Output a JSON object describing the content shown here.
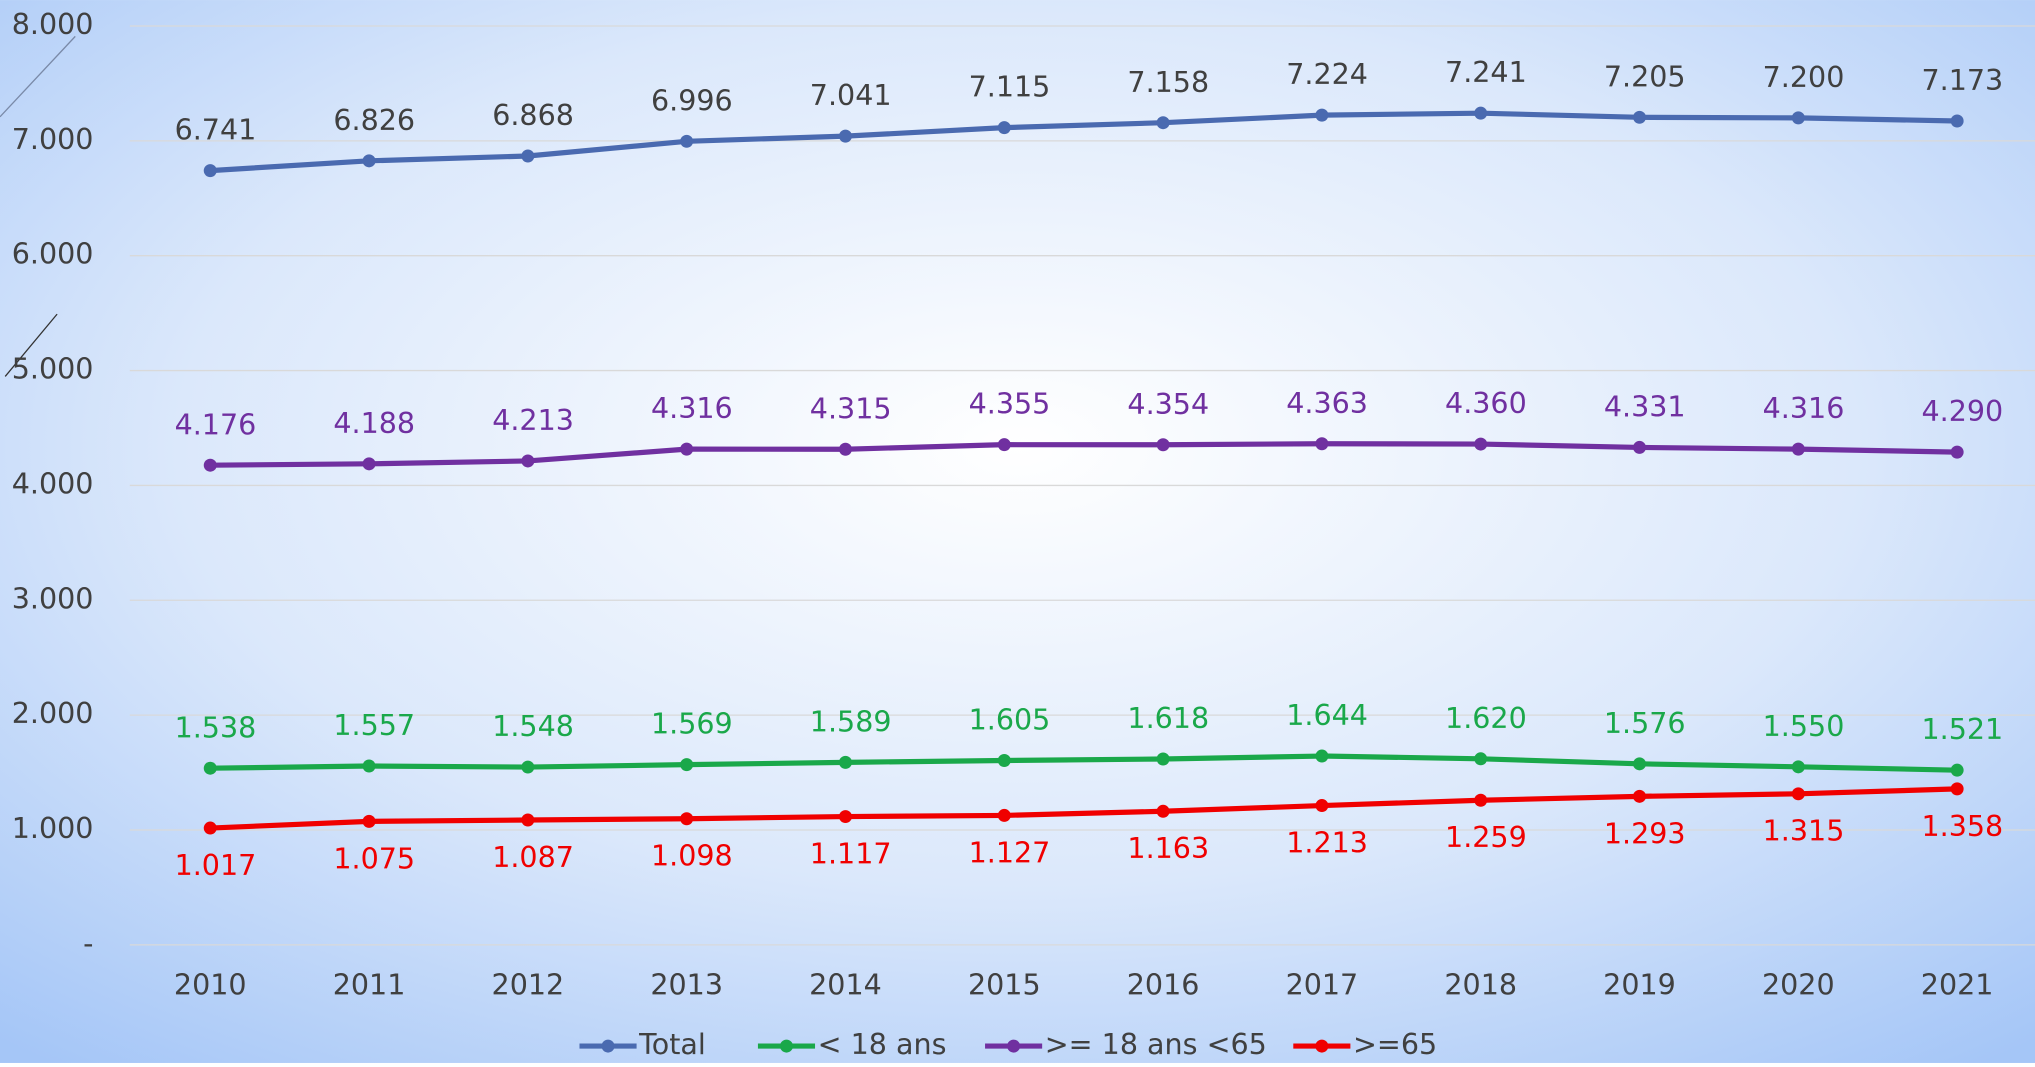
{
  "chart_data": {
    "type": "line",
    "categories": [
      "2010",
      "2011",
      "2012",
      "2013",
      "2014",
      "2015",
      "2016",
      "2017",
      "2018",
      "2019",
      "2020",
      "2021"
    ],
    "ylim": [
      0,
      8000
    ],
    "yticks": [
      {
        "value": 0,
        "label": "-"
      },
      {
        "value": 1000,
        "label": "1.000"
      },
      {
        "value": 2000,
        "label": "2.000"
      },
      {
        "value": 3000,
        "label": "3.000"
      },
      {
        "value": 4000,
        "label": "4.000"
      },
      {
        "value": 5000,
        "label": "5.000"
      },
      {
        "value": 6000,
        "label": "6.000"
      },
      {
        "value": 7000,
        "label": "7.000"
      },
      {
        "value": 8000,
        "label": "8.000"
      }
    ],
    "grid": true,
    "legend": "bottom",
    "series": [
      {
        "name": "Total",
        "color": "#4a6ab0",
        "label_color": "#404040",
        "label_position": "above",
        "values": [
          6741,
          6826,
          6868,
          6996,
          7041,
          7115,
          7158,
          7224,
          7241,
          7205,
          7200,
          7173
        ],
        "value_labels": [
          "6.741",
          "6.826",
          "6.868",
          "6.996",
          "7.041",
          "7.115",
          "7.158",
          "7.224",
          "7.241",
          "7.205",
          "7.200",
          "7.173"
        ]
      },
      {
        "name": "< 18 ans",
        "color": "#1aa84a",
        "label_color": "#1aa84a",
        "label_position": "above",
        "values": [
          1538,
          1557,
          1548,
          1569,
          1589,
          1605,
          1618,
          1644,
          1620,
          1576,
          1550,
          1521
        ],
        "value_labels": [
          "1.538",
          "1.557",
          "1.548",
          "1.569",
          "1.589",
          "1.605",
          "1.618",
          "1.644",
          "1.620",
          "1.576",
          "1.550",
          "1.521"
        ]
      },
      {
        "name": ">= 18 ans <65",
        "color": "#7030a0",
        "label_color": "#7030a0",
        "label_position": "above",
        "values": [
          4176,
          4188,
          4213,
          4316,
          4315,
          4355,
          4354,
          4363,
          4360,
          4331,
          4316,
          4290
        ],
        "value_labels": [
          "4.176",
          "4.188",
          "4.213",
          "4.316",
          "4.315",
          "4.355",
          "4.354",
          "4.363",
          "4.360",
          "4.331",
          "4.316",
          "4.290"
        ]
      },
      {
        "name": ">=65",
        "color": "#f00000",
        "label_color": "#f00000",
        "label_position": "below",
        "values": [
          1017,
          1075,
          1087,
          1098,
          1117,
          1127,
          1163,
          1213,
          1259,
          1293,
          1315,
          1358
        ],
        "value_labels": [
          "1.017",
          "1.075",
          "1.087",
          "1.098",
          "1.117",
          "1.127",
          "1.163",
          "1.213",
          "1.259",
          "1.293",
          "1.315",
          "1.358"
        ]
      }
    ]
  }
}
